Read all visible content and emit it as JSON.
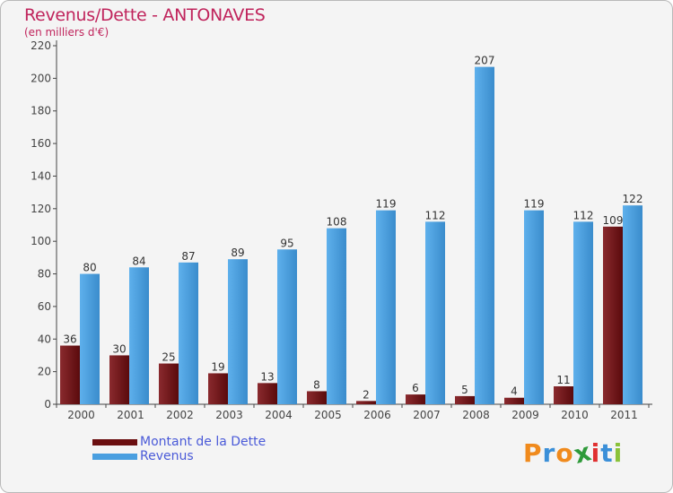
{
  "title": "Revenus/Dette - ANTONAVES",
  "subtitle": "(en milliers d'€)",
  "chart_data": {
    "type": "bar",
    "title": "Revenus/Dette - ANTONAVES",
    "ylabel": "(en milliers d'€)",
    "xlabel": "",
    "categories": [
      "2000",
      "2001",
      "2002",
      "2003",
      "2004",
      "2005",
      "2006",
      "2007",
      "2008",
      "2009",
      "2010",
      "2011"
    ],
    "series": [
      {
        "name": "Montant de la Dette",
        "color": "#7a1a1d",
        "values": [
          36,
          30,
          25,
          19,
          13,
          8,
          2,
          6,
          5,
          4,
          11,
          109
        ]
      },
      {
        "name": "Revenus",
        "color": "#4a9fe0",
        "values": [
          80,
          84,
          87,
          89,
          95,
          108,
          119,
          112,
          207,
          119,
          112,
          122
        ]
      }
    ],
    "ylim": [
      0,
      220
    ],
    "yticks": [
      0,
      20,
      40,
      60,
      80,
      100,
      120,
      140,
      160,
      180,
      200,
      220
    ],
    "grid": false,
    "legend": "bottom-left"
  },
  "legend": {
    "items": [
      {
        "label": "Montant de la Dette",
        "color": "#6b0f10"
      },
      {
        "label": "Revenus",
        "color": "#4a9fe0"
      }
    ]
  },
  "brand": {
    "letters": [
      "P",
      "r",
      "o",
      "x",
      "i",
      "t",
      "i"
    ],
    "colors": [
      "#f08a1c",
      "#3a8fd8",
      "#f08a1c",
      "#2f9a3a",
      "#e03030",
      "#3a8fd8",
      "#8ac23a"
    ]
  }
}
